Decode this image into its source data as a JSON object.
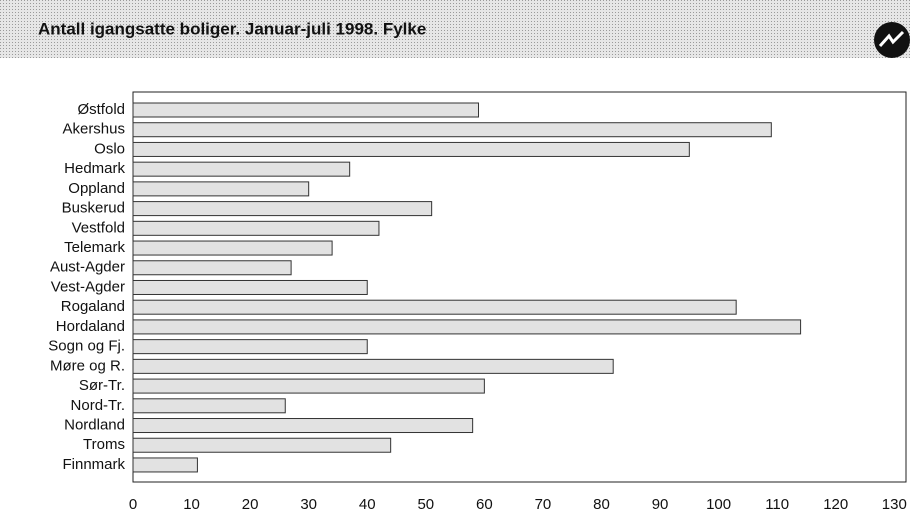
{
  "chart_data": {
    "type": "bar",
    "orientation": "horizontal",
    "title": "Antall igangsatte boliger. Januar-juli 1998. Fylke",
    "categories": [
      "Østfold",
      "Akershus",
      "Oslo",
      "Hedmark",
      "Oppland",
      "Buskerud",
      "Vestfold",
      "Telemark",
      "Aust-Agder",
      "Vest-Agder",
      "Rogaland",
      "Hordaland",
      "Sogn og Fj.",
      "Møre og R.",
      "Sør-Tr.",
      "Nord-Tr.",
      "Nordland",
      "Troms",
      "Finnmark"
    ],
    "values": [
      59,
      109,
      95,
      37,
      30,
      51,
      42,
      34,
      27,
      40,
      103,
      114,
      40,
      82,
      60,
      26,
      58,
      44,
      11
    ],
    "color": "#e2e2e2",
    "xlim": [
      0,
      132
    ],
    "xticks": [
      0,
      10,
      20,
      30,
      40,
      50,
      60,
      70,
      80,
      90,
      100,
      110,
      120,
      130
    ],
    "grid": false
  }
}
